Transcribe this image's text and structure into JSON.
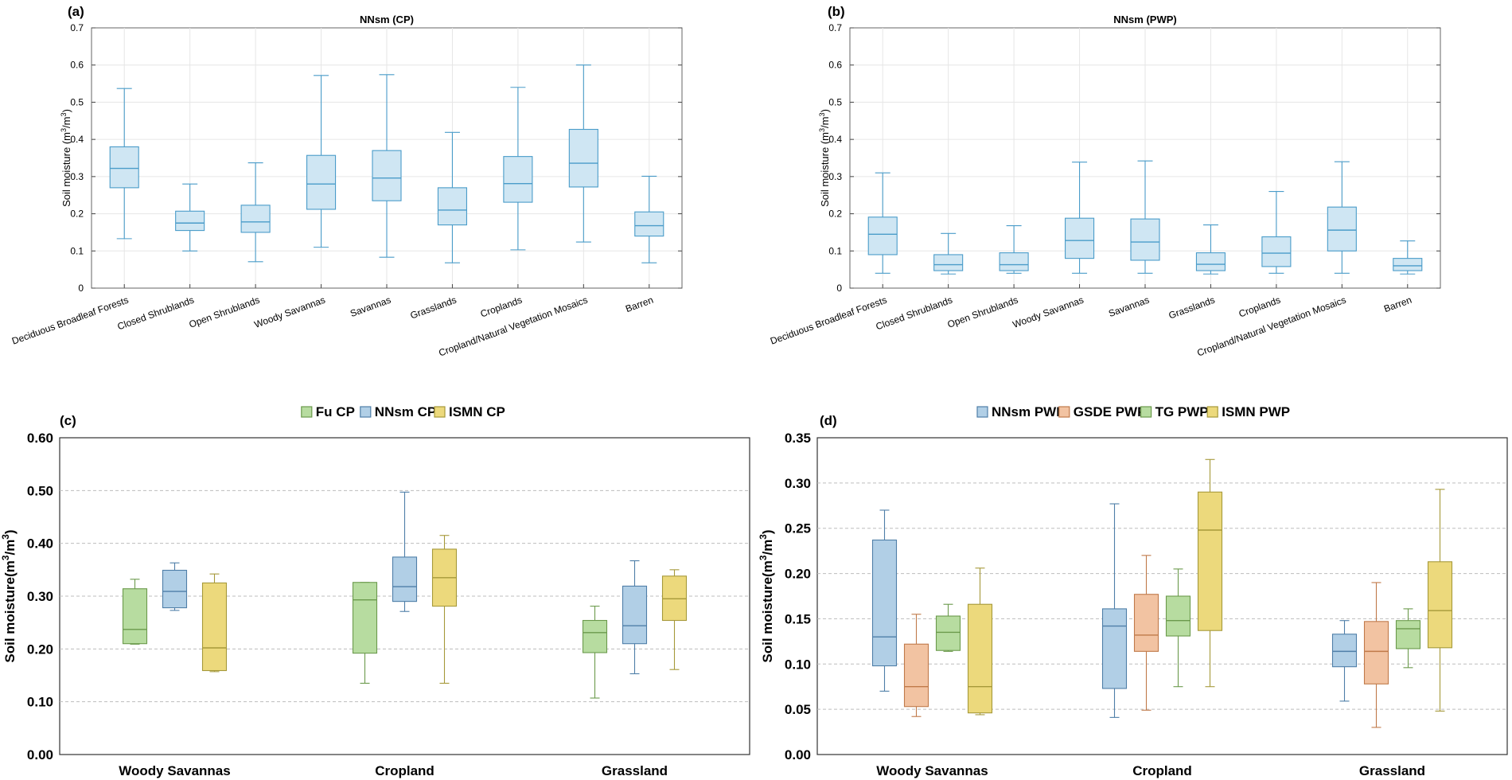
{
  "chart_data": [
    {
      "panel": "(a)",
      "type": "box",
      "title": "NNsm (CP)",
      "ylabel": "Soil moisture (m³/m³)",
      "ylim": [
        0,
        0.7
      ],
      "yticks": [
        "0",
        "0.1",
        "0.2",
        "0.3",
        "0.4",
        "0.5",
        "0.6",
        "0.7"
      ],
      "grid": true,
      "categories": [
        "Deciduous Broadleaf Forests",
        "Closed Shrublands",
        "Open Shrublands",
        "Woody Savannas",
        "Savannas",
        "Grasslands",
        "Croplands",
        "Cropland/Natural Vegetation Mosaics",
        "Barren"
      ],
      "series": [
        {
          "name": "NNsm CP",
          "color": "#4a9cc9",
          "fill": "#cfe6f3",
          "boxes": [
            {
              "min": 0.133,
              "q1": 0.27,
              "median": 0.322,
              "q3": 0.38,
              "max": 0.537
            },
            {
              "min": 0.1,
              "q1": 0.155,
              "median": 0.175,
              "q3": 0.207,
              "max": 0.28
            },
            {
              "min": 0.071,
              "q1": 0.15,
              "median": 0.178,
              "q3": 0.223,
              "max": 0.337
            },
            {
              "min": 0.11,
              "q1": 0.212,
              "median": 0.28,
              "q3": 0.357,
              "max": 0.572
            },
            {
              "min": 0.083,
              "q1": 0.235,
              "median": 0.296,
              "q3": 0.37,
              "max": 0.574
            },
            {
              "min": 0.068,
              "q1": 0.17,
              "median": 0.21,
              "q3": 0.27,
              "max": 0.419
            },
            {
              "min": 0.103,
              "q1": 0.231,
              "median": 0.281,
              "q3": 0.354,
              "max": 0.54
            },
            {
              "min": 0.124,
              "q1": 0.272,
              "median": 0.336,
              "q3": 0.427,
              "max": 0.6
            },
            {
              "min": 0.068,
              "q1": 0.14,
              "median": 0.168,
              "q3": 0.205,
              "max": 0.301
            }
          ]
        }
      ]
    },
    {
      "panel": "(b)",
      "type": "box",
      "title": "NNsm (PWP)",
      "ylabel": "Soil moisture (m³/m³)",
      "ylim": [
        0,
        0.7
      ],
      "yticks": [
        "0",
        "0.1",
        "0.2",
        "0.3",
        "0.4",
        "0.5",
        "0.6",
        "0.7"
      ],
      "grid": true,
      "categories": [
        "Deciduous Broadleaf Forests",
        "Closed Shrublands",
        "Open Shrublands",
        "Woody Savannas",
        "Savannas",
        "Grasslands",
        "Croplands",
        "Cropland/Natural Vegetation Mosaics",
        "Barren"
      ],
      "series": [
        {
          "name": "NNsm PWP",
          "color": "#4a9cc9",
          "fill": "#cfe6f3",
          "boxes": [
            {
              "min": 0.04,
              "q1": 0.09,
              "median": 0.145,
              "q3": 0.191,
              "max": 0.31
            },
            {
              "min": 0.038,
              "q1": 0.047,
              "median": 0.063,
              "q3": 0.09,
              "max": 0.147
            },
            {
              "min": 0.04,
              "q1": 0.047,
              "median": 0.063,
              "q3": 0.095,
              "max": 0.168
            },
            {
              "min": 0.04,
              "q1": 0.08,
              "median": 0.128,
              "q3": 0.188,
              "max": 0.339
            },
            {
              "min": 0.04,
              "q1": 0.075,
              "median": 0.124,
              "q3": 0.186,
              "max": 0.342
            },
            {
              "min": 0.038,
              "q1": 0.047,
              "median": 0.064,
              "q3": 0.095,
              "max": 0.17
            },
            {
              "min": 0.04,
              "q1": 0.058,
              "median": 0.094,
              "q3": 0.138,
              "max": 0.26
            },
            {
              "min": 0.04,
              "q1": 0.1,
              "median": 0.156,
              "q3": 0.218,
              "max": 0.34
            },
            {
              "min": 0.038,
              "q1": 0.047,
              "median": 0.06,
              "q3": 0.08,
              "max": 0.127
            }
          ]
        }
      ]
    },
    {
      "panel": "(c)",
      "type": "box",
      "title": "",
      "ylabel": "Soil moisture(m³/m³)",
      "ylim": [
        0,
        0.6
      ],
      "yticks": [
        "0.00",
        "0.10",
        "0.20",
        "0.30",
        "0.40",
        "0.50",
        "0.60"
      ],
      "grid": true,
      "categories": [
        "Woody Savannas",
        "Cropland",
        "Grassland"
      ],
      "legend": [
        "Fu CP",
        "NNsm CP",
        "ISMN CP"
      ],
      "series": [
        {
          "name": "Fu CP",
          "color": "#6b9a4c",
          "fill": "#b7dca0",
          "boxes": [
            {
              "min": 0.209,
              "q1": 0.21,
              "median": 0.237,
              "q3": 0.314,
              "max": 0.332
            },
            {
              "min": 0.135,
              "q1": 0.192,
              "median": 0.293,
              "q3": 0.326,
              "max": 0.326
            },
            {
              "min": 0.107,
              "q1": 0.193,
              "median": 0.231,
              "q3": 0.254,
              "max": 0.281
            }
          ]
        },
        {
          "name": "NNsm CP",
          "color": "#4f7fa8",
          "fill": "#b1cfe6",
          "boxes": [
            {
              "min": 0.273,
              "q1": 0.278,
              "median": 0.309,
              "q3": 0.349,
              "max": 0.363
            },
            {
              "min": 0.271,
              "q1": 0.29,
              "median": 0.318,
              "q3": 0.374,
              "max": 0.497
            },
            {
              "min": 0.153,
              "q1": 0.21,
              "median": 0.244,
              "q3": 0.319,
              "max": 0.367
            }
          ]
        },
        {
          "name": "ISMN CP",
          "color": "#a6993a",
          "fill": "#ecd97c",
          "boxes": [
            {
              "min": 0.157,
              "q1": 0.159,
              "median": 0.202,
              "q3": 0.325,
              "max": 0.342
            },
            {
              "min": 0.135,
              "q1": 0.281,
              "median": 0.335,
              "q3": 0.389,
              "max": 0.415
            },
            {
              "min": 0.161,
              "q1": 0.254,
              "median": 0.295,
              "q3": 0.338,
              "max": 0.35
            }
          ]
        }
      ]
    },
    {
      "panel": "(d)",
      "type": "box",
      "title": "",
      "ylabel": "Soil moisture(m³/m³)",
      "ylim": [
        0,
        0.35
      ],
      "yticks": [
        "0.00",
        "0.05",
        "0.10",
        "0.15",
        "0.20",
        "0.25",
        "0.30",
        "0.35"
      ],
      "grid": true,
      "categories": [
        "Woody Savannas",
        "Cropland",
        "Grassland"
      ],
      "legend": [
        "NNsm PWP",
        "GSDE PWP",
        "TG PWP",
        "ISMN PWP"
      ],
      "series": [
        {
          "name": "NNsm PWP",
          "color": "#4f7fa8",
          "fill": "#b1cfe6",
          "boxes": [
            {
              "min": 0.07,
              "q1": 0.098,
              "median": 0.13,
              "q3": 0.237,
              "max": 0.27
            },
            {
              "min": 0.041,
              "q1": 0.073,
              "median": 0.142,
              "q3": 0.161,
              "max": 0.277
            },
            {
              "min": 0.059,
              "q1": 0.097,
              "median": 0.114,
              "q3": 0.133,
              "max": 0.148
            }
          ]
        },
        {
          "name": "GSDE PWP",
          "color": "#c07a4a",
          "fill": "#f2c3a2",
          "boxes": [
            {
              "min": 0.042,
              "q1": 0.053,
              "median": 0.075,
              "q3": 0.122,
              "max": 0.155
            },
            {
              "min": 0.049,
              "q1": 0.114,
              "median": 0.132,
              "q3": 0.177,
              "max": 0.22
            },
            {
              "min": 0.03,
              "q1": 0.078,
              "median": 0.114,
              "q3": 0.147,
              "max": 0.19
            }
          ]
        },
        {
          "name": "TG PWP",
          "color": "#6b9a4c",
          "fill": "#b7dca0",
          "boxes": [
            {
              "min": 0.114,
              "q1": 0.115,
              "median": 0.135,
              "q3": 0.153,
              "max": 0.166
            },
            {
              "min": 0.075,
              "q1": 0.131,
              "median": 0.148,
              "q3": 0.175,
              "max": 0.205
            },
            {
              "min": 0.096,
              "q1": 0.117,
              "median": 0.139,
              "q3": 0.148,
              "max": 0.161
            }
          ]
        },
        {
          "name": "ISMN PWP",
          "color": "#a6993a",
          "fill": "#ecd97c",
          "boxes": [
            {
              "min": 0.044,
              "q1": 0.046,
              "median": 0.075,
              "q3": 0.166,
              "max": 0.206
            },
            {
              "min": 0.075,
              "q1": 0.137,
              "median": 0.248,
              "q3": 0.29,
              "max": 0.326
            },
            {
              "min": 0.048,
              "q1": 0.118,
              "median": 0.159,
              "q3": 0.213,
              "max": 0.293
            }
          ]
        }
      ]
    }
  ]
}
